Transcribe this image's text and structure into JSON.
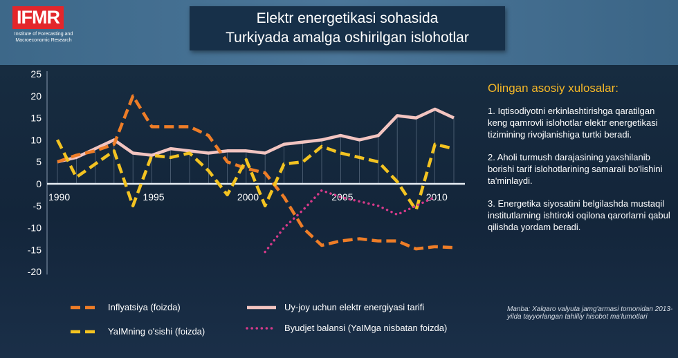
{
  "logo": {
    "text": "IFMR",
    "subtitle": "Institute of Forecasting and Macroeconomic Research"
  },
  "title": {
    "line1": "Elektr energetikasi sohasida",
    "line2": "Turkiyada amalga oshirilgan islohotlar"
  },
  "conclusions": {
    "heading": "Olingan asosiy xulosalar:",
    "items": [
      "1. Iqtisodiyotni erkinlashtirishga qaratilgan keng qamrovli islohotlar elektr energetikasi tizimining rivojlanishiga turtki beradi.",
      "2. Aholi turmush darajasining yaxshilanib borishi tarif islohotlarining samarali bo'lishini ta'minlaydi.",
      "3. Energetika siyosatini belgilashda mustaqil institutlarning ishtiroki oqilona qarorlarni qabul qilishda yordam beradi."
    ]
  },
  "source": "Manba: Xalqaro valyuta jamg'armasi tomonidan 2013-yilda tayyorlangan tahliliy hisobot ma'lumotlari",
  "chart_data": {
    "type": "line",
    "title": "",
    "x": [
      1990,
      1991,
      1992,
      1993,
      1994,
      1995,
      1996,
      1997,
      1998,
      1999,
      2000,
      2001,
      2002,
      2003,
      2004,
      2005,
      2006,
      2007,
      2008,
      2009,
      2010,
      2011
    ],
    "xticks": [
      "1990",
      "1995",
      "2000",
      "2005",
      "2010"
    ],
    "yticks": [
      "25",
      "20",
      "15",
      "10",
      "5",
      "0",
      "-5",
      "-10",
      "-15",
      "-20"
    ],
    "ylim": [
      -20,
      25
    ],
    "legend_placement": "bottom",
    "series": [
      {
        "name": "Inflyatsiya (foizda)",
        "color": "#ee7d27",
        "style": "dash",
        "values": [
          5,
          6.5,
          7.5,
          9,
          20,
          13,
          13,
          13,
          11,
          5,
          3.5,
          2.5,
          -3,
          -10,
          -14,
          -13,
          -12.5,
          -13,
          -13,
          -14.8,
          -14.3,
          -14.5
        ]
      },
      {
        "name": "Uy-joy uchun elektr energiyasi tarifi",
        "color": "#f2c4c0",
        "style": "solid",
        "values": [
          5,
          6,
          8,
          10,
          7,
          6.5,
          8,
          7.5,
          7,
          7.5,
          7.5,
          7,
          9,
          9.5,
          10,
          11,
          10,
          11,
          15.5,
          15,
          17,
          15
        ]
      },
      {
        "name": "YaIMning o'sishi (foizda)",
        "color": "#f3c321",
        "style": "dash",
        "values": [
          10,
          1.5,
          4.5,
          7.5,
          -5,
          6.5,
          6,
          7,
          3,
          -2.5,
          5.5,
          -5,
          4.5,
          5,
          8.5,
          7,
          6,
          5,
          0.5,
          -6,
          9,
          8
        ]
      },
      {
        "name": "Byudjet balansi (YaIMga nisbatan foizda)",
        "color": "#d63a8a",
        "style": "dot",
        "values": [
          null,
          null,
          null,
          null,
          null,
          null,
          null,
          null,
          null,
          null,
          null,
          -15.5,
          -10,
          -6,
          -1.5,
          -3,
          -4,
          -5,
          -7,
          -5,
          -3,
          null
        ]
      }
    ]
  }
}
